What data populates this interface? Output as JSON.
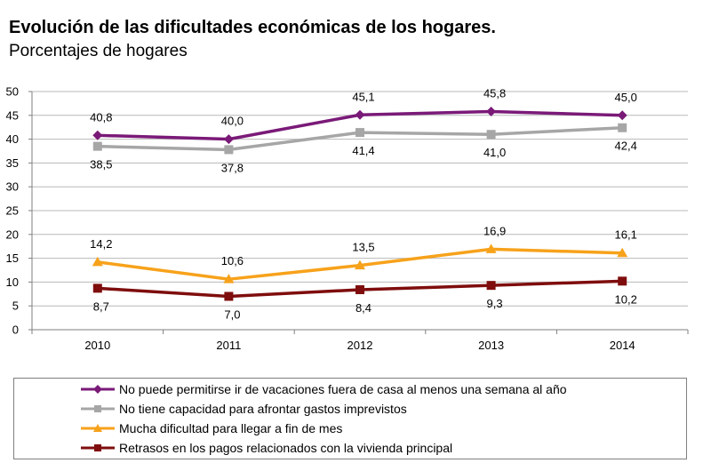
{
  "chart_data": {
    "type": "line",
    "title": "Evolución de las dificultades económicas de los hogares.",
    "subtitle": "Porcentajes de hogares",
    "xlabel": "",
    "ylabel": "",
    "categories": [
      "2010",
      "2011",
      "2012",
      "2013",
      "2014"
    ],
    "ylim": [
      0,
      50
    ],
    "yticks": [
      "0",
      "5",
      "10",
      "15",
      "20",
      "25",
      "30",
      "35",
      "40",
      "45",
      "50"
    ],
    "grid": true,
    "legend_position": "bottom",
    "series": [
      {
        "name": "No puede permitirse ir de vacaciones fuera de casa al menos una semana al año",
        "values": [
          40.8,
          40.0,
          45.1,
          45.8,
          45.0
        ],
        "labels": [
          "40,8",
          "40,0",
          "45,1",
          "45,8",
          "45,0"
        ],
        "label_side": "above",
        "color": "#7a1a78",
        "marker": "diamond"
      },
      {
        "name": "No tiene capacidad para afrontar gastos imprevistos",
        "values": [
          38.5,
          37.8,
          41.4,
          41.0,
          42.4
        ],
        "labels": [
          "38,5",
          "37,8",
          "41,4",
          "41,0",
          "42,4"
        ],
        "label_side": "below",
        "color": "#a6a6a6",
        "marker": "square"
      },
      {
        "name": "Mucha dificultad para llegar a fin de mes",
        "values": [
          14.2,
          10.6,
          13.5,
          16.9,
          16.1
        ],
        "labels": [
          "14,2",
          "10,6",
          "13,5",
          "16,9",
          "16,1"
        ],
        "label_side": "above",
        "color": "#f7a21b",
        "marker": "triangle"
      },
      {
        "name": "Retrasos en los pagos relacionados con la vivienda principal",
        "values": [
          8.7,
          7.0,
          8.4,
          9.3,
          10.2
        ],
        "labels": [
          "8,7",
          "7,0",
          "8,4",
          "9,3",
          "10,2"
        ],
        "label_side": "below",
        "color": "#7f0d0d",
        "marker": "square"
      }
    ]
  }
}
